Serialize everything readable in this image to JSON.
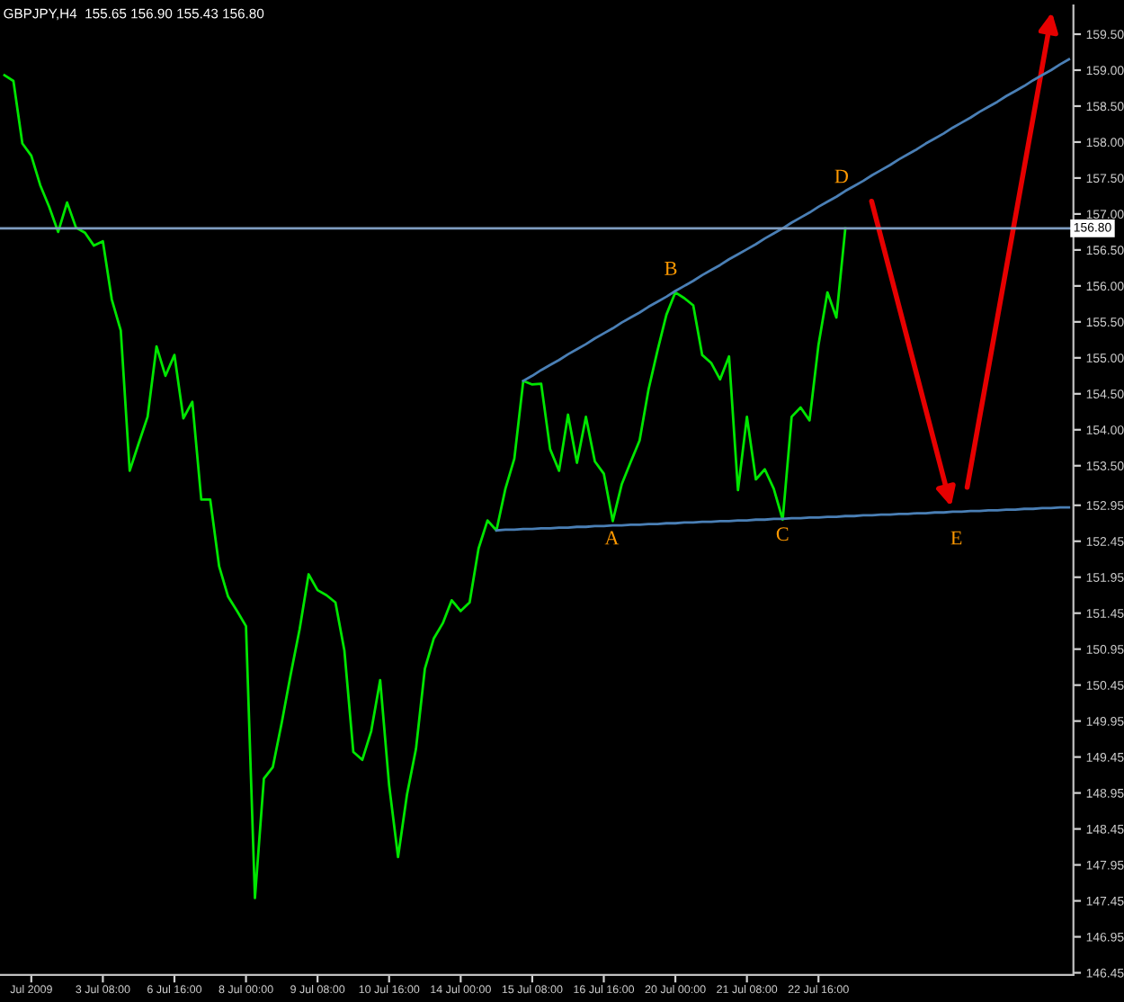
{
  "chart_data": {
    "type": "line",
    "title": "GBPJPY,H4  155.65 156.90 155.43 156.80",
    "categories": [
      null,
      null,
      null,
      "Jul 2009",
      null,
      null,
      null,
      null,
      null,
      null,
      null,
      "3 Jul 08:00",
      null,
      null,
      null,
      null,
      null,
      null,
      null,
      "6 Jul 16:00",
      null,
      null,
      null,
      null,
      null,
      null,
      null,
      "8 Jul 00:00",
      null,
      null,
      null,
      null,
      null,
      null,
      null,
      "9 Jul 08:00",
      null,
      null,
      null,
      null,
      null,
      null,
      null,
      "10 Jul 16:00",
      null,
      null,
      null,
      null,
      null,
      null,
      null,
      "14 Jul 00:00",
      null,
      null,
      null,
      null,
      null,
      null,
      null,
      "15 Jul 08:00",
      null,
      null,
      null,
      null,
      null,
      null,
      null,
      "16 Jul 16:00",
      null,
      null,
      null,
      null,
      null,
      null,
      null,
      "20 Jul 00:00",
      null,
      null,
      null,
      null,
      null,
      null,
      null,
      "21 Jul 08:00",
      null,
      null,
      null,
      null,
      null,
      null,
      null,
      "22 Jul 16:00",
      null,
      null,
      null,
      null,
      null,
      null,
      null,
      null,
      null,
      null,
      null,
      null,
      null,
      null,
      null,
      null,
      null,
      null,
      null,
      null,
      null,
      null,
      null,
      null,
      null,
      null,
      null,
      null
    ],
    "ylim": [
      146.42,
      159.9
    ],
    "yticks": [
      {
        "value": 159.5,
        "label": "159.50"
      },
      {
        "value": 159.0,
        "label": "159.00"
      },
      {
        "value": 158.5,
        "label": "158.50"
      },
      {
        "value": 158.0,
        "label": "158.00"
      },
      {
        "value": 157.5,
        "label": "157.50"
      },
      {
        "value": 157.0,
        "label": "157.00"
      },
      {
        "value": 156.5,
        "label": "156.50"
      },
      {
        "value": 156.0,
        "label": "156.00"
      },
      {
        "value": 155.5,
        "label": "155.50"
      },
      {
        "value": 155.0,
        "label": "155.00"
      },
      {
        "value": 154.5,
        "label": "154.50"
      },
      {
        "value": 154.0,
        "label": "154.00"
      },
      {
        "value": 153.5,
        "label": "153.50"
      },
      152.95,
      152.45,
      151.95,
      151.45,
      150.95,
      150.45,
      149.95,
      149.45,
      148.95,
      148.45,
      147.95,
      147.45,
      146.95,
      146.45
    ],
    "grid": false,
    "legend": false,
    "marker": "none",
    "line_style": "solid",
    "series": [
      {
        "color": "#00e600",
        "values": [
          158.93,
          158.85,
          157.98,
          157.81,
          157.4,
          157.1,
          156.75,
          157.16,
          156.81,
          156.74,
          156.56,
          156.62,
          155.81,
          155.38,
          153.43,
          153.81,
          154.18,
          155.16,
          154.75,
          155.04,
          154.16,
          154.39,
          153.03,
          153.03,
          152.1,
          151.68,
          151.48,
          151.27,
          147.49,
          149.15,
          149.31,
          149.93,
          150.6,
          151.23,
          151.99,
          151.77,
          151.7,
          151.6,
          150.93,
          149.52,
          149.41,
          149.81,
          150.52,
          149.06,
          148.06,
          148.93,
          149.56,
          150.68,
          151.1,
          151.31,
          151.63,
          151.48,
          151.6,
          152.35,
          152.74,
          152.6,
          153.18,
          153.6,
          154.68,
          154.63,
          154.64,
          153.73,
          153.43,
          154.21,
          153.54,
          154.18,
          153.56,
          153.39,
          152.73,
          153.24,
          153.55,
          153.85,
          154.56,
          155.1,
          155.6,
          155.91,
          155.83,
          155.73,
          155.04,
          154.93,
          154.7,
          155.02,
          153.16,
          154.18,
          153.31,
          153.45,
          153.18,
          152.75,
          154.18,
          154.31,
          154.13,
          155.18,
          155.91,
          155.56,
          156.8,
          null,
          null,
          null,
          null,
          null,
          null,
          null,
          null,
          null,
          null,
          null,
          null,
          null,
          null,
          null,
          null,
          null,
          null,
          null,
          null,
          null,
          null,
          null,
          null,
          null
        ]
      },
      {
        "color": "#4a7fb5",
        "values": [
          null,
          null,
          null,
          null,
          null,
          null,
          null,
          null,
          null,
          null,
          null,
          null,
          null,
          null,
          null,
          null,
          null,
          null,
          null,
          null,
          null,
          null,
          null,
          null,
          null,
          null,
          null,
          null,
          null,
          null,
          null,
          null,
          null,
          null,
          null,
          null,
          null,
          null,
          null,
          null,
          null,
          null,
          null,
          null,
          null,
          null,
          null,
          null,
          null,
          null,
          null,
          null,
          null,
          null,
          null,
          null,
          null,
          null,
          154.68,
          154.75,
          154.83,
          154.9,
          154.97,
          155.05,
          155.12,
          155.19,
          155.27,
          155.34,
          155.41,
          155.49,
          155.56,
          155.63,
          155.71,
          155.78,
          155.85,
          155.93,
          156.0,
          156.07,
          156.15,
          156.22,
          156.29,
          156.37,
          156.44,
          156.51,
          156.58,
          156.66,
          156.73,
          156.8,
          156.88,
          156.95,
          157.02,
          157.1,
          157.17,
          157.24,
          157.32,
          157.39,
          157.46,
          157.54,
          157.61,
          157.68,
          157.76,
          157.83,
          157.9,
          157.98,
          158.05,
          158.12,
          158.2,
          158.27,
          158.34,
          158.42,
          158.49,
          158.56,
          158.64,
          158.71,
          158.78,
          158.86,
          158.93,
          159.0,
          159.08,
          159.15
        ]
      },
      {
        "color": "#4a7fb5",
        "values": [
          null,
          null,
          null,
          null,
          null,
          null,
          null,
          null,
          null,
          null,
          null,
          null,
          null,
          null,
          null,
          null,
          null,
          null,
          null,
          null,
          null,
          null,
          null,
          null,
          null,
          null,
          null,
          null,
          null,
          null,
          null,
          null,
          null,
          null,
          null,
          null,
          null,
          null,
          null,
          null,
          null,
          null,
          null,
          null,
          null,
          null,
          null,
          null,
          null,
          null,
          null,
          null,
          null,
          null,
          null,
          152.6,
          152.61,
          152.61,
          152.62,
          152.62,
          152.63,
          152.63,
          152.64,
          152.64,
          152.65,
          152.65,
          152.66,
          152.66,
          152.67,
          152.67,
          152.68,
          152.68,
          152.69,
          152.69,
          152.7,
          152.7,
          152.71,
          152.71,
          152.72,
          152.72,
          152.73,
          152.73,
          152.74,
          152.74,
          152.75,
          152.75,
          152.76,
          152.76,
          152.77,
          152.77,
          152.78,
          152.78,
          152.79,
          152.79,
          152.8,
          152.8,
          152.81,
          152.81,
          152.82,
          152.82,
          152.83,
          152.83,
          152.84,
          152.84,
          152.85,
          152.85,
          152.86,
          152.86,
          152.87,
          152.87,
          152.88,
          152.88,
          152.89,
          152.89,
          152.9,
          152.9,
          152.91,
          152.91,
          152.92,
          152.92
        ]
      }
    ],
    "ref_lines": [
      {
        "axis": "y",
        "value": 156.8,
        "label": "156.80",
        "color": "#7f9cbf"
      }
    ],
    "annotations": [
      "A",
      "B",
      "C",
      "D",
      "E"
    ]
  }
}
